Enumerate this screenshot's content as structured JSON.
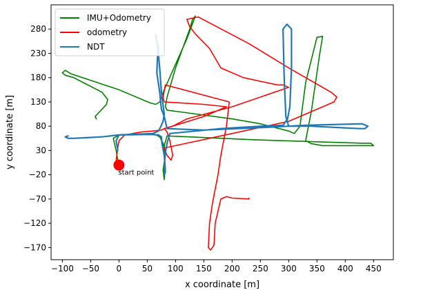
{
  "chart_data": {
    "type": "line",
    "title": "",
    "xlabel": "x coordinate [m]",
    "ylabel": "y coordinate [m]",
    "xlim": [
      -120,
      485
    ],
    "ylim": [
      -195,
      330
    ],
    "xticks": [
      -100,
      -50,
      0,
      50,
      100,
      150,
      200,
      250,
      300,
      350,
      400,
      450
    ],
    "xtick_labels": [
      "−100",
      "−50",
      "0",
      "50",
      "100",
      "150",
      "200",
      "250",
      "300",
      "350",
      "400",
      "450"
    ],
    "yticks": [
      -170,
      -120,
      -70,
      -20,
      30,
      80,
      130,
      180,
      230,
      280
    ],
    "ytick_labels": [
      "−170",
      "−120",
      "−70",
      "−20",
      "30",
      "80",
      "130",
      "180",
      "230",
      "280"
    ],
    "grid": false,
    "legend_position": "top-left",
    "series": [
      {
        "name": "IMU+Odometry",
        "color": "#008000",
        "x": [
          -40,
          -42,
          -30,
          -22,
          -20,
          -30,
          -80,
          -95,
          -100,
          -95,
          -85,
          0,
          55,
          65,
          72,
          80,
          120,
          135,
          130,
          125,
          100,
          85,
          82,
          85,
          200,
          250,
          300,
          310,
          320,
          330,
          350,
          360,
          355,
          340,
          330,
          340,
          360,
          440,
          450,
          445,
          430,
          240,
          85,
          80,
          80,
          82,
          80,
          78,
          82,
          78,
          72,
          60,
          0,
          -10,
          -5,
          -2
        ],
        "y": [
          95,
          100,
          115,
          125,
          135,
          150,
          180,
          185,
          190,
          195,
          188,
          155,
          128,
          125,
          130,
          155,
          260,
          307,
          300,
          280,
          200,
          140,
          120,
          113,
          95,
          85,
          70,
          65,
          80,
          170,
          263,
          265,
          230,
          110,
          50,
          44,
          40,
          40,
          40,
          45,
          45,
          52,
          60,
          40,
          20,
          -5,
          -30,
          -10,
          20,
          45,
          58,
          65,
          62,
          55,
          30,
          10
        ]
      },
      {
        "name": "odometry",
        "color": "#ff0000",
        "x": [
          -5,
          -2,
          0,
          10,
          40,
          60,
          75,
          80,
          85,
          90,
          95,
          92,
          85,
          80,
          100,
          200,
          300,
          380,
          385,
          375,
          300,
          230,
          140,
          120,
          125,
          135,
          160,
          180,
          220,
          280,
          290,
          300,
          200,
          120,
          95,
          80,
          100,
          150,
          180,
          190,
          150,
          80,
          78,
          82,
          195,
          190,
          180,
          175,
          170,
          165,
          160,
          158,
          162,
          168,
          170,
          180,
          190,
          200,
          230,
          230
        ],
        "y": [
          10,
          35,
          50,
          62,
          68,
          70,
          72,
          75,
          68,
          50,
          20,
          10,
          20,
          35,
          40,
          65,
          90,
          130,
          140,
          150,
          200,
          250,
          305,
          300,
          285,
          270,
          240,
          200,
          180,
          165,
          165,
          160,
          120,
          95,
          80,
          75,
          82,
          100,
          115,
          120,
          125,
          130,
          140,
          165,
          130,
          80,
          20,
          -20,
          -50,
          -80,
          -120,
          -170,
          -175,
          -165,
          -120,
          -70,
          -65,
          -68,
          -70,
          -68
        ]
      },
      {
        "name": "NDT",
        "color": "#1f77b4",
        "x": [
          -90,
          -95,
          -90,
          -80,
          -30,
          0,
          60,
          70,
          75,
          78,
          80,
          75,
          72,
          68,
          65,
          65,
          67,
          70,
          68,
          67,
          72,
          75,
          80,
          85,
          150,
          250,
          330,
          430,
          440,
          435,
          425,
          340,
          300,
          295,
          292,
          290,
          297,
          305,
          305,
          302,
          298,
          290,
          250,
          180,
          90,
          85,
          82,
          80,
          80,
          82,
          80,
          76,
          75,
          70,
          55,
          0,
          -5,
          -2
        ],
        "y": [
          60,
          58,
          55,
          55,
          58,
          62,
          65,
          70,
          82,
          90,
          105,
          150,
          200,
          250,
          265,
          268,
          255,
          240,
          220,
          190,
          150,
          115,
          100,
          75,
          72,
          77,
          82,
          85,
          80,
          75,
          75,
          80,
          80,
          100,
          180,
          280,
          290,
          280,
          200,
          120,
          95,
          82,
          80,
          75,
          65,
          45,
          25,
          -5,
          -20,
          -15,
          20,
          45,
          58,
          62,
          63,
          62,
          50,
          30
        ]
      }
    ],
    "annotations": [
      {
        "text": "start point",
        "x": 0,
        "y": 0
      }
    ],
    "marker": {
      "x": 0,
      "y": 0,
      "color": "#ff0000"
    }
  }
}
